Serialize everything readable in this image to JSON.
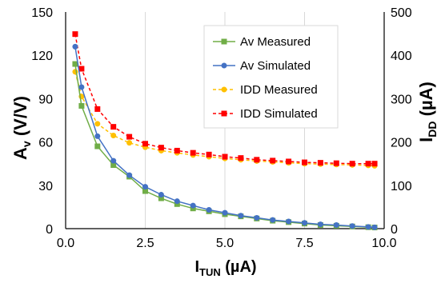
{
  "chart_data": {
    "type": "line",
    "title": "",
    "xlabel": {
      "main": "I",
      "sub": "TUN",
      "unit": " (µA)"
    },
    "ylabel_left": {
      "main": "A",
      "sub": "v",
      "unit": " (V/V)"
    },
    "ylabel_right": {
      "main": "I",
      "sub": "DD",
      "unit": " (µA)"
    },
    "xlim": [
      0,
      10
    ],
    "ylim_left": [
      0,
      150
    ],
    "ylim_right": [
      0,
      500
    ],
    "x_ticks": [
      0,
      2.5,
      5,
      7.5,
      10
    ],
    "x_tick_labels": [
      "0.0",
      "2.5",
      "5.0",
      "7.5",
      "10.0"
    ],
    "y_left_ticks": [
      0,
      30,
      60,
      90,
      120,
      150
    ],
    "y_left_tick_labels": [
      "0",
      "30",
      "60",
      "90",
      "120",
      "150"
    ],
    "y_right_ticks": [
      0,
      100,
      200,
      300,
      400,
      500
    ],
    "y_right_tick_labels": [
      "0",
      "100",
      "200",
      "300",
      "400",
      "500"
    ],
    "grid": "vertical",
    "legend_position": "top-right",
    "series": [
      {
        "name": "Av Measured",
        "axis": "left",
        "color": "#70AD47",
        "marker": "square",
        "line": "solid",
        "x": [
          0.3,
          0.5,
          1.0,
          1.5,
          2.0,
          2.5,
          3.0,
          3.5,
          4.0,
          4.5,
          5.0,
          5.5,
          6.0,
          6.5,
          7.0,
          7.5,
          8.0,
          8.5,
          9.0,
          9.5,
          9.7
        ],
        "y": [
          114,
          85,
          57,
          44,
          36,
          26,
          21,
          17,
          14,
          12,
          10,
          8.5,
          7,
          5.5,
          4.5,
          3.5,
          2.5,
          2,
          1.5,
          1,
          0.8
        ]
      },
      {
        "name": "Av Simulated",
        "axis": "left",
        "color": "#4472C4",
        "marker": "circle",
        "line": "solid",
        "x": [
          0.3,
          0.5,
          1.0,
          1.5,
          2.0,
          2.5,
          3.0,
          3.5,
          4.0,
          4.5,
          5.0,
          5.5,
          6.0,
          6.5,
          7.0,
          7.5,
          8.0,
          8.5,
          9.0,
          9.5,
          9.7
        ],
        "y": [
          126,
          98,
          64,
          47,
          37,
          29,
          23.5,
          19,
          16,
          13,
          11,
          9,
          7.5,
          6,
          5,
          4,
          3,
          2.5,
          1.8,
          1.2,
          0.9
        ]
      },
      {
        "name": "IDD Measured",
        "axis": "right",
        "color": "#FFC000",
        "marker": "circle",
        "line": "dashed",
        "x": [
          0.3,
          0.5,
          1.0,
          1.5,
          2.0,
          2.5,
          3.0,
          3.5,
          4.0,
          4.5,
          5.0,
          5.5,
          6.0,
          6.5,
          7.0,
          7.5,
          8.0,
          8.5,
          9.0,
          9.5,
          9.7
        ],
        "y": [
          362,
          305,
          242,
          215,
          198,
          188,
          180,
          175,
          170,
          166,
          162,
          159,
          156,
          154,
          152,
          150,
          149,
          148,
          147,
          146,
          145
        ]
      },
      {
        "name": "IDD Simulated",
        "axis": "right",
        "color": "#FF0000",
        "marker": "square",
        "line": "dashed",
        "x": [
          0.3,
          0.5,
          1.0,
          1.5,
          2.0,
          2.5,
          3.0,
          3.5,
          4.0,
          4.5,
          5.0,
          5.5,
          6.0,
          6.5,
          7.0,
          7.5,
          8.0,
          8.5,
          9.0,
          9.5,
          9.7
        ],
        "y": [
          449,
          369,
          276,
          235,
          212,
          196,
          187,
          180,
          175,
          171,
          166,
          163,
          159,
          157,
          155,
          153,
          152,
          151,
          150,
          150,
          150
        ]
      }
    ]
  }
}
